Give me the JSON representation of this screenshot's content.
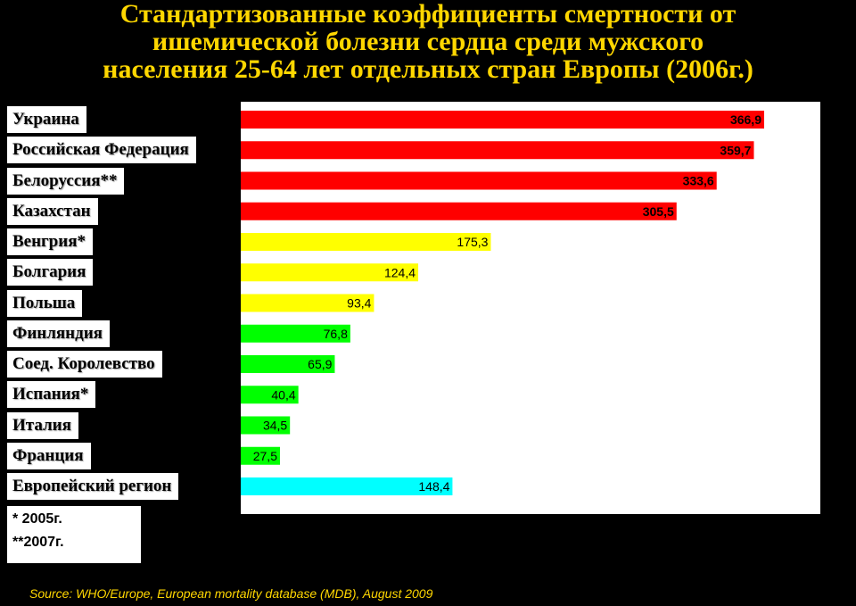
{
  "colors": {
    "background": "#000000",
    "title": "#ffd700",
    "source": "#ffd700",
    "high": "#ff0000",
    "mid": "#ffff00",
    "low": "#00ff00",
    "region": "#00ffff"
  },
  "title_lines": [
    "Стандартизованные коэффициенты смертности от",
    "ишемической болезни сердца среди мужского",
    "населения 25-64 лет отдельных стран Европы (2006г.)"
  ],
  "notes": [
    "* 2005г.",
    "**2007г."
  ],
  "source": "Source: WHO/Europe, European mortality database (MDB), August  2009",
  "chart_data": {
    "type": "bar",
    "orientation": "horizontal",
    "title": "Стандартизованные коэффициенты смертности от ишемической болезни сердца среди мужского населения 25-64 лет отдельных стран Европы (2006г.)",
    "xlim": [
      0,
      420
    ],
    "grid": false,
    "categories": [
      "Украина",
      "Российская Федерация",
      "Белоруссия**",
      "Казахстан",
      "Венгрия*",
      "Болгария",
      "Польша",
      "Финляндия",
      "Соед. Королевство",
      "Испания*",
      "Италия",
      "Франция",
      "Европейский регион"
    ],
    "values": [
      366.9,
      359.7,
      333.6,
      305.5,
      175.3,
      124.4,
      93.4,
      76.8,
      65.9,
      40.4,
      34.5,
      27.5,
      148.4
    ],
    "value_labels": [
      "366,9",
      "359,7",
      "333,6",
      "305,5",
      "175,3",
      "124,4",
      "93,4",
      "76,8",
      "65,9",
      "40,4",
      "34,5",
      "27,5",
      "148,4"
    ],
    "bar_colors": [
      "#ff0000",
      "#ff0000",
      "#ff0000",
      "#ff0000",
      "#ffff00",
      "#ffff00",
      "#ffff00",
      "#00ff00",
      "#00ff00",
      "#00ff00",
      "#00ff00",
      "#00ff00",
      "#00ffff"
    ]
  }
}
